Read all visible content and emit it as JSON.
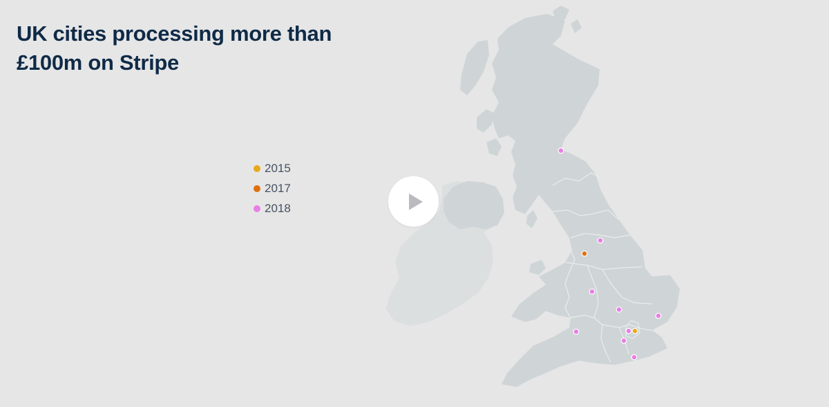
{
  "title": "UK cities processing more than £100m on Stripe",
  "legend": [
    {
      "label": "2015",
      "color": "#e6a91c"
    },
    {
      "label": "2017",
      "color": "#e0700f"
    },
    {
      "label": "2018",
      "color": "#e87ee6"
    }
  ],
  "colors": {
    "background": "#e6e6e7",
    "great_britain": "#cfd5d7",
    "ireland": "#dcdfe0",
    "borders": "#e9ecee",
    "title": "#0f2a46"
  },
  "icons": {
    "play": "play-icon"
  }
}
